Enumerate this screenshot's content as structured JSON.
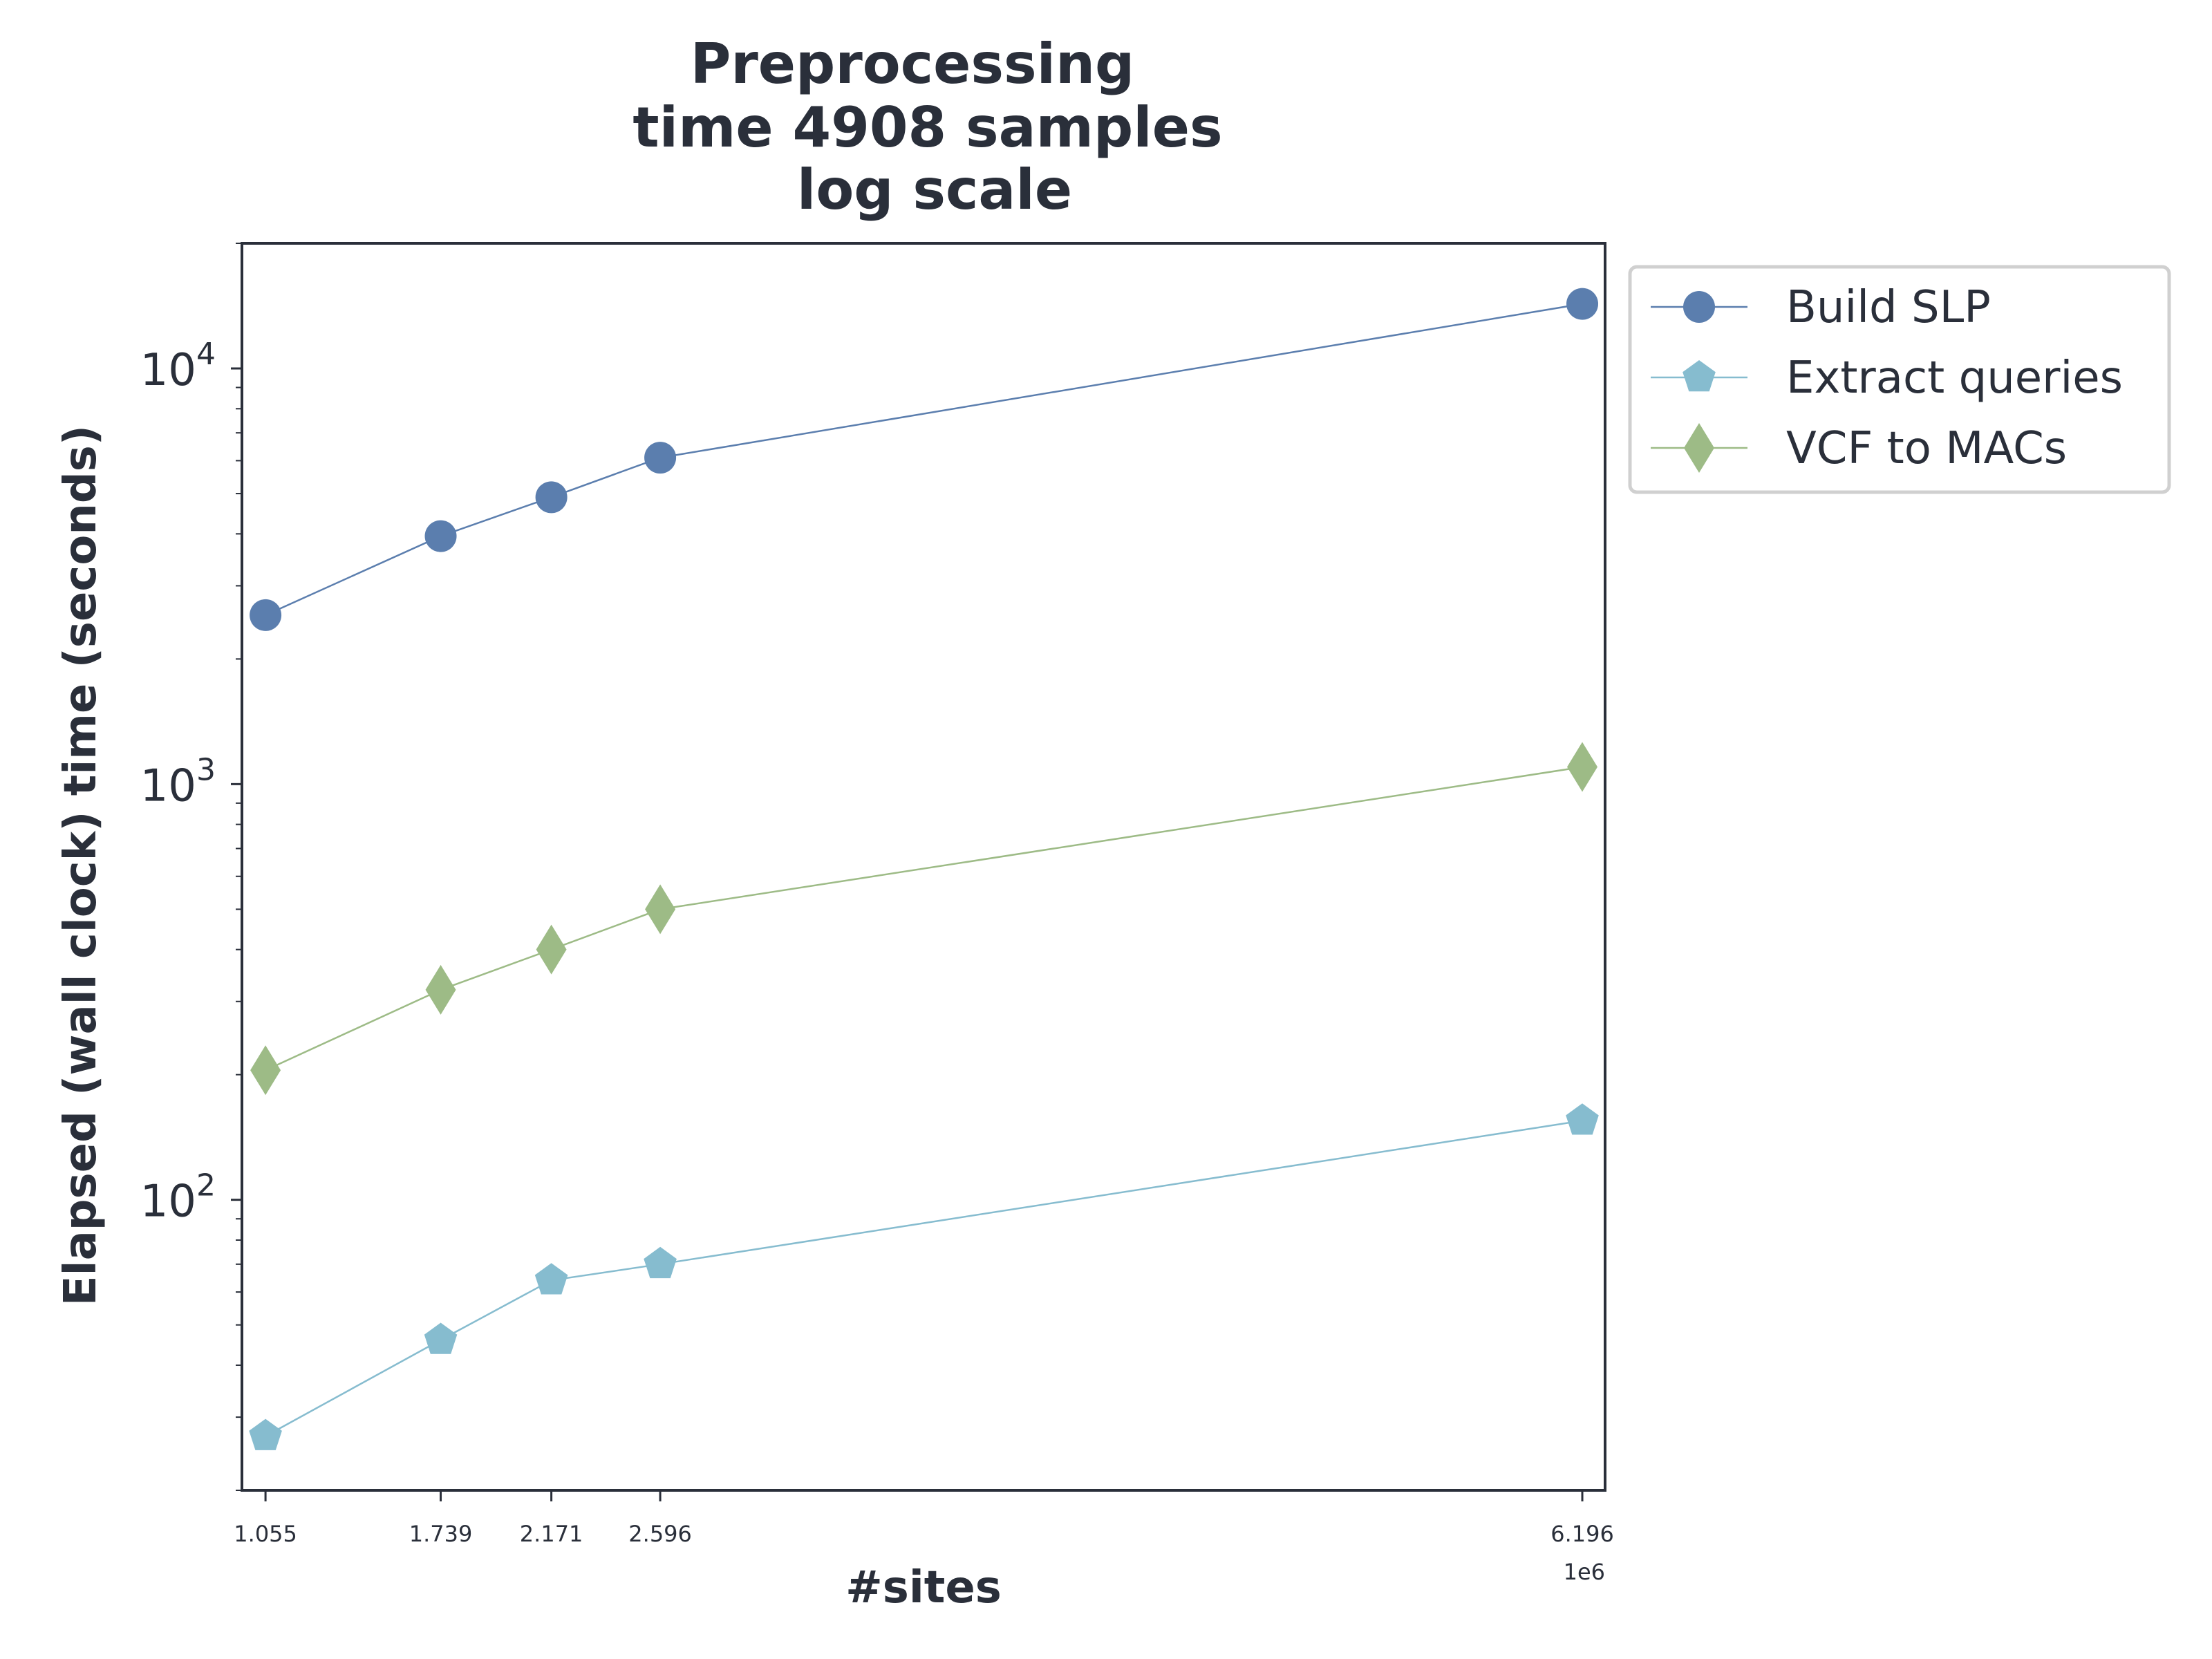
{
  "chart_data": {
    "type": "line",
    "title": [
      "Preprocessing",
      "time 4908 samples",
      "log scale"
    ],
    "xlabel": "#sites",
    "ylabel": "Elapsed (wall clock) time (seconds)",
    "x_offset_label": "1e6",
    "yscale": "log",
    "ylim": [
      20,
      20000
    ],
    "x": [
      1055000,
      1739000,
      2171000,
      2596000,
      6196000
    ],
    "xtick_labels": [
      "1.055",
      "1.739",
      "2.171",
      "2.596",
      "6.196"
    ],
    "ytick_labels": [
      {
        "base": "10",
        "exp": "2",
        "value": 100
      },
      {
        "base": "10",
        "exp": "3",
        "value": 1000
      },
      {
        "base": "10",
        "exp": "4",
        "value": 10000
      }
    ],
    "series": [
      {
        "name": "Build SLP",
        "marker": "circle",
        "color": "#5b7eae",
        "values": [
          2550,
          3950,
          4900,
          6100,
          14300
        ]
      },
      {
        "name": "Extract queries",
        "marker": "pentagon",
        "color": "#86bccf",
        "values": [
          27,
          46,
          64,
          70,
          155
        ]
      },
      {
        "name": "VCF to MACs",
        "marker": "diamond",
        "color": "#9dbb86",
        "values": [
          205,
          320,
          400,
          500,
          1100
        ]
      }
    ],
    "legend": "outside-right-top",
    "grid": false
  }
}
